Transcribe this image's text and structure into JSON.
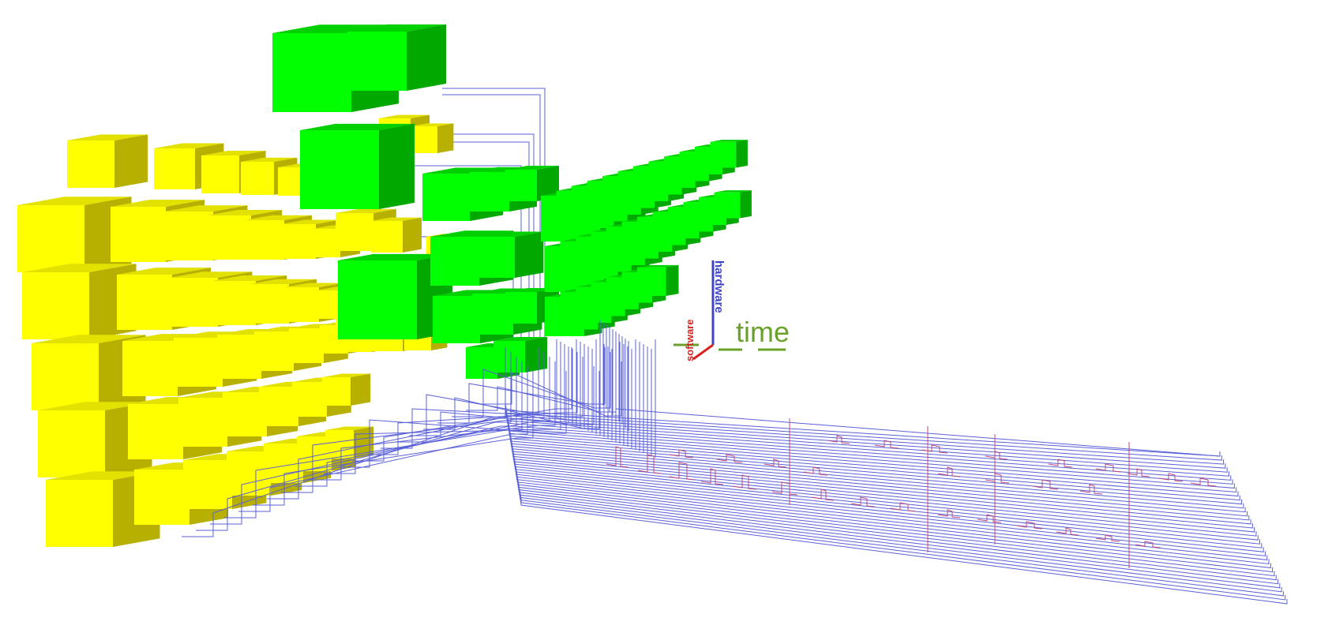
{
  "diagram": {
    "axes": {
      "time_label": "time",
      "hardware_label": "hardware",
      "software_label": "software"
    },
    "colors": {
      "time_axis": "#6aa12a",
      "hardware_axis": "#3f45c4",
      "software_axis": "#d8201f",
      "yellow_face": "#ffff00",
      "yellow_top": "#e2e100",
      "yellow_side": "#b7b000",
      "green_face": "#00ff00",
      "green_top": "#00cf00",
      "green_side": "#00a800",
      "wire": "#5a60d8",
      "signal": "#c2487a"
    }
  }
}
